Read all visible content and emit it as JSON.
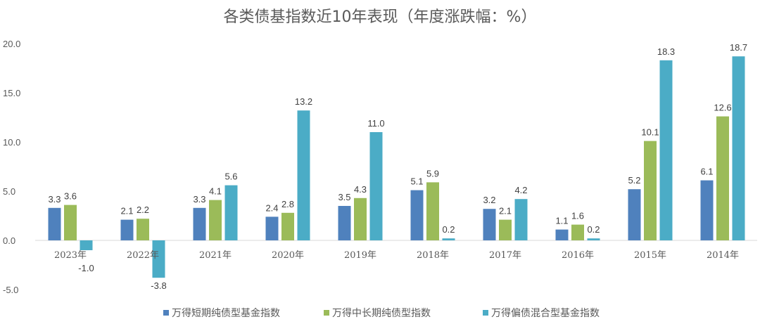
{
  "chart_data": {
    "type": "bar",
    "title": "各类债基指数近10年表现（年度涨跌幅：%）",
    "categories": [
      "2023年",
      "2022年",
      "2021年",
      "2020年",
      "2019年",
      "2018年",
      "2017年",
      "2016年",
      "2015年",
      "2014年"
    ],
    "series": [
      {
        "name": "万得短期纯债型基金指数",
        "color": "#4f81bd",
        "values": [
          3.3,
          2.1,
          3.3,
          2.4,
          3.5,
          5.1,
          3.2,
          1.1,
          5.2,
          6.1
        ]
      },
      {
        "name": "万得中长期纯债型指数",
        "color": "#9bbb59",
        "values": [
          3.6,
          2.2,
          4.1,
          2.8,
          4.3,
          5.9,
          2.1,
          1.6,
          10.1,
          12.6
        ]
      },
      {
        "name": "万得偏债混合型基金指数",
        "color": "#4bacc6",
        "values": [
          -1.0,
          -3.8,
          5.6,
          13.2,
          11.0,
          0.2,
          4.2,
          0.2,
          18.3,
          18.7
        ]
      }
    ],
    "ylim": [
      -5,
      20
    ],
    "yticks": [
      "-5.0",
      "0.0",
      "5.0",
      "10.0",
      "15.0",
      "20.0"
    ],
    "grid": false,
    "legend": "bottom",
    "xlabel": "",
    "ylabel": ""
  }
}
